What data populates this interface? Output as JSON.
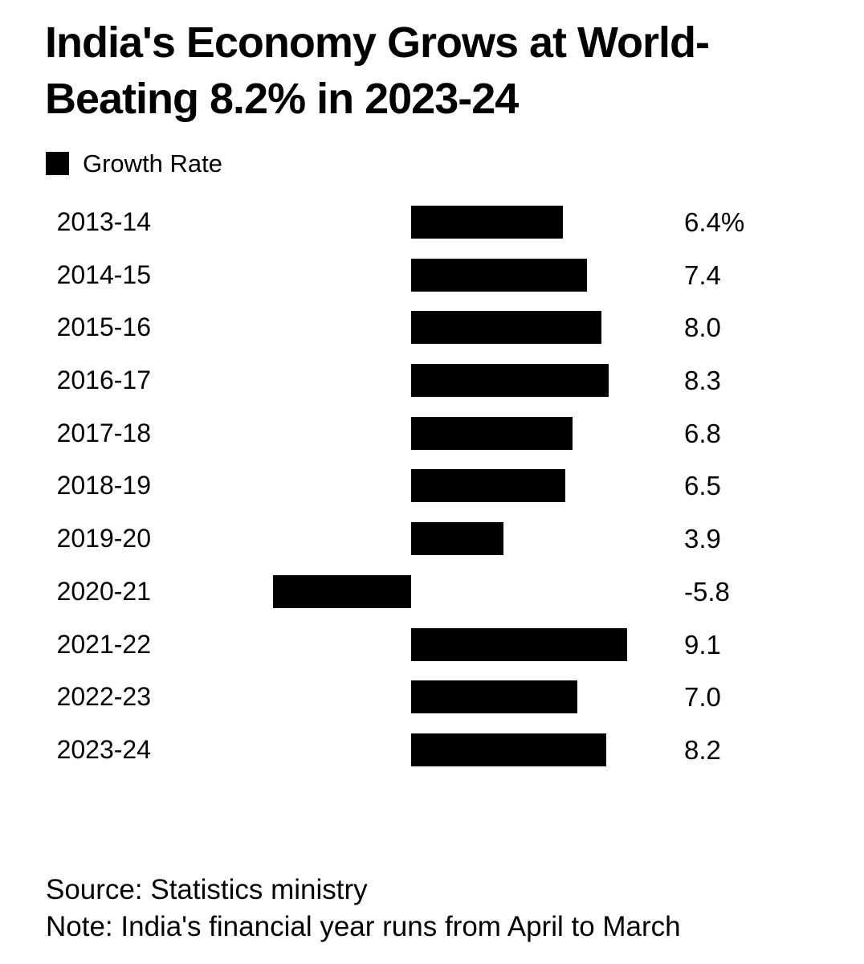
{
  "chart_data": {
    "type": "bar",
    "orientation": "horizontal",
    "title": "India's Economy Grows at World-Beating 8.2% in 2023-24",
    "title_lines": [
      "India's Economy Grows at World-",
      "Beating 8.2% in 2023-24"
    ],
    "legend": [
      {
        "label": "Growth Rate",
        "color": "#000000"
      }
    ],
    "legend_position": "top-left",
    "categories": [
      "2013-14",
      "2014-15",
      "2015-16",
      "2016-17",
      "2017-18",
      "2018-19",
      "2019-20",
      "2020-21",
      "2021-22",
      "2022-23",
      "2023-24"
    ],
    "values": [
      6.4,
      7.4,
      8.0,
      8.3,
      6.8,
      6.5,
      3.9,
      -5.8,
      9.1,
      7.0,
      8.2
    ],
    "value_labels": [
      "6.4%",
      "7.4",
      "8.0",
      "8.3",
      "6.8",
      "6.5",
      "3.9",
      "-5.8",
      "9.1",
      "7.0",
      "8.2"
    ],
    "unit": "%",
    "xlim": [
      -5.8,
      9.1
    ],
    "grid": false,
    "bar_color": "#000000",
    "background_color": "#ffffff",
    "source": "Source: Statistics ministry",
    "note": "Note: India's financial year runs from April to March"
  }
}
